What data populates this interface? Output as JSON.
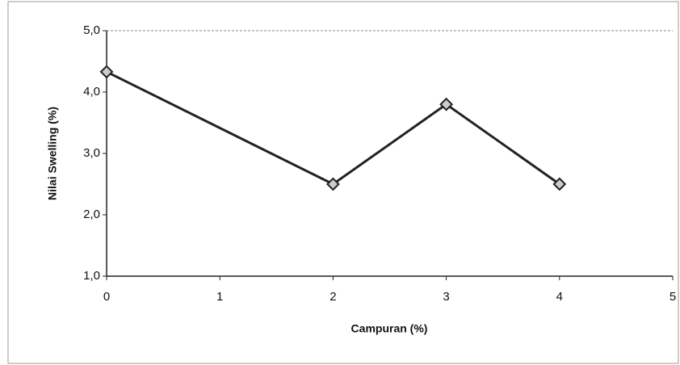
{
  "chart_data": {
    "type": "line",
    "x_label": "Campuran (%)",
    "y_label": "Nilai Swelling (%)",
    "x": [
      0,
      2,
      3,
      4
    ],
    "series": [
      {
        "color": "#222222",
        "values": [
          4.33,
          2.5,
          3.8,
          2.5
        ]
      }
    ],
    "xlim": [
      0,
      5
    ],
    "xticks": [
      0,
      1,
      2,
      3,
      4,
      5
    ],
    "ylim": [
      1,
      5
    ],
    "yticks": [
      {
        "value": 1,
        "label": "1,0"
      },
      {
        "value": 2,
        "label": "2,0"
      },
      {
        "value": 3,
        "label": "3,0"
      },
      {
        "value": 4,
        "label": "4,0"
      },
      {
        "value": 5,
        "label": "5,0"
      }
    ],
    "grid": false
  }
}
